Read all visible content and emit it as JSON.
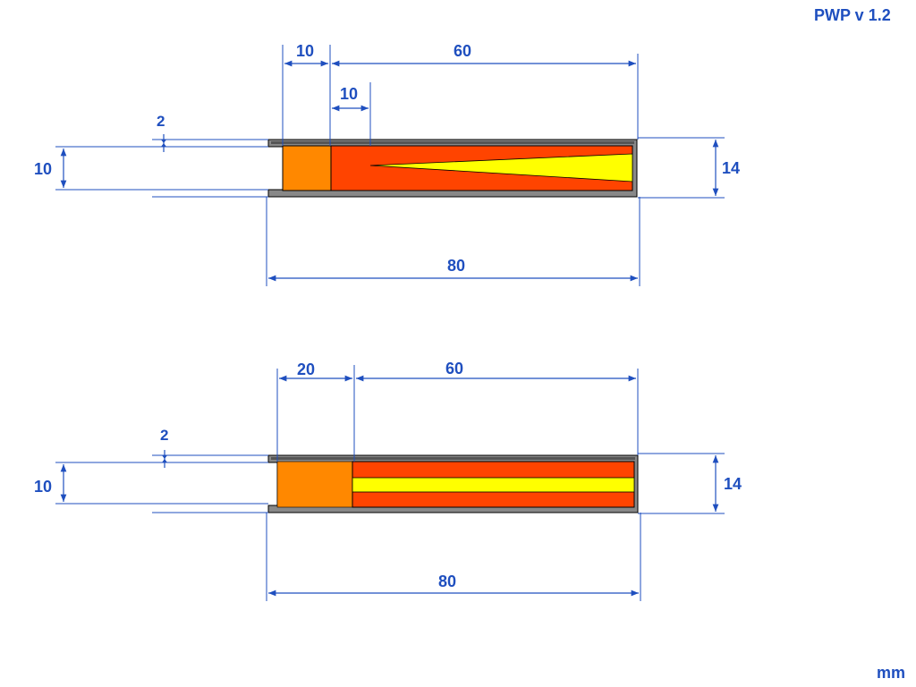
{
  "header": {
    "version": "PWP  v  1.2"
  },
  "footer": {
    "unit": "mm"
  },
  "colors": {
    "casing": "#888888",
    "outline": "#000000",
    "plug": "#ff8800",
    "propellant": "#ff4400",
    "core": "#ffff00",
    "dimension": "#1f4fbf"
  },
  "top_drawing": {
    "core_shape": "tapered",
    "dims": {
      "plug_length": "10",
      "grain_length": "60",
      "core_taper_start": "10",
      "wall": "2",
      "bore": "10",
      "outer_diameter": "14",
      "total_length": "80"
    }
  },
  "bottom_drawing": {
    "core_shape": "straight",
    "dims": {
      "plug_length": "20",
      "grain_length": "60",
      "wall": "2",
      "bore": "10",
      "outer_diameter": "14",
      "total_length": "80"
    }
  }
}
